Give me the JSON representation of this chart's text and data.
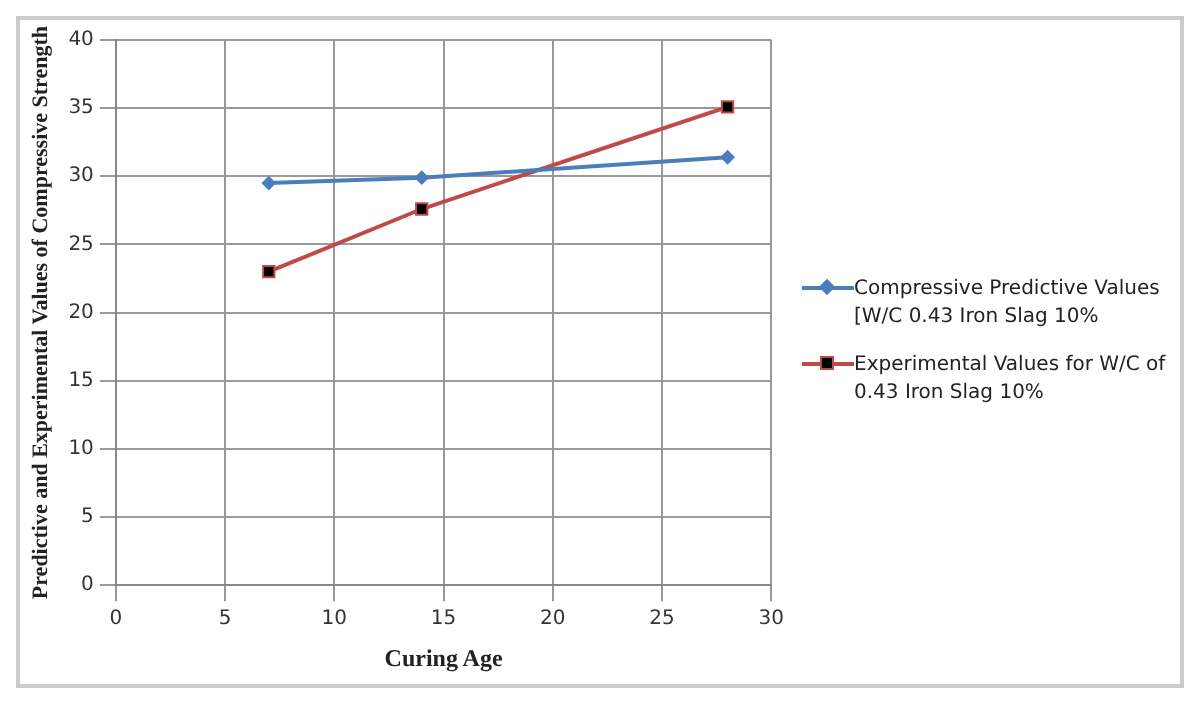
{
  "chart_data": {
    "type": "line",
    "xlabel": "Curing Age",
    "ylabel": "Predictive and Experimental Values of Compressive Strength",
    "x": [
      7,
      14,
      28
    ],
    "series": [
      {
        "name": "Compressive Predictive Values [W/C 0.43 Iron Slag 10%",
        "color": "#4a7ebb",
        "marker": "diamond",
        "values": [
          29.5,
          29.9,
          31.4
        ]
      },
      {
        "name": "Experimental Values for W/C of 0.43 Iron Slag 10%",
        "color": "#be4b48",
        "marker": "square",
        "values": [
          23,
          27.6,
          35.1
        ]
      }
    ],
    "xlim": [
      0,
      30
    ],
    "xticks": [
      0,
      5,
      10,
      15,
      20,
      25,
      30
    ],
    "ylim": [
      0,
      40
    ],
    "yticks": [
      0,
      5,
      10,
      15,
      20,
      25,
      30,
      35,
      40
    ],
    "grid": true,
    "legend": "right"
  }
}
